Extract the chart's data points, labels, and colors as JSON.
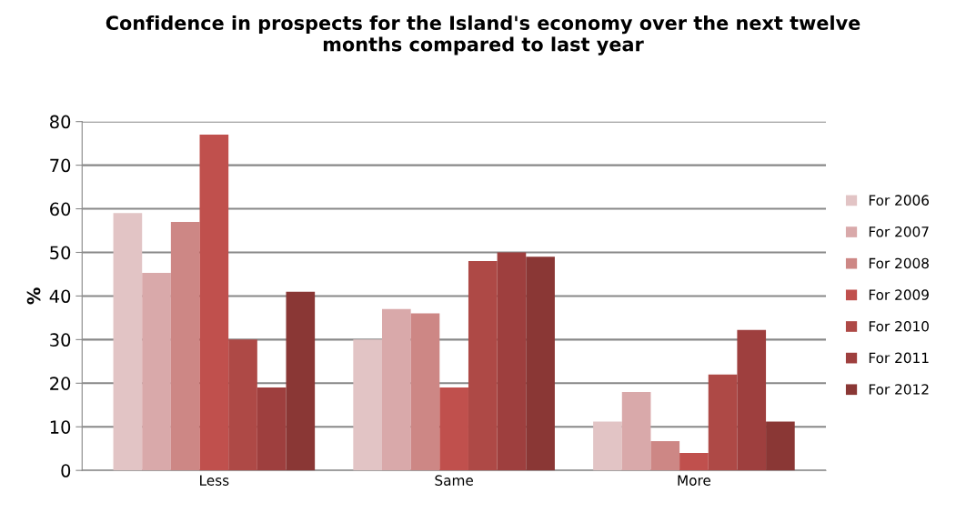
{
  "chart_data": {
    "type": "bar",
    "title": "Confidence in prospects for the Island's economy over the next twelve months compared to last year",
    "ylabel": "%",
    "categories": [
      "Less",
      "Same",
      "More"
    ],
    "series": [
      {
        "name": "For 2006",
        "color": "#e2c4c5",
        "values": [
          59,
          30,
          11.2
        ]
      },
      {
        "name": "For 2007",
        "color": "#d9a9aa",
        "values": [
          45.3,
          37,
          18
        ]
      },
      {
        "name": "For 2008",
        "color": "#cd8785",
        "values": [
          57,
          36,
          6.7
        ]
      },
      {
        "name": "For 2009",
        "color": "#c0504d",
        "values": [
          77,
          19,
          4
        ]
      },
      {
        "name": "For 2010",
        "color": "#ae4946",
        "values": [
          30,
          48,
          22
        ]
      },
      {
        "name": "For 2011",
        "color": "#9e3f3e",
        "values": [
          19,
          50,
          32.2
        ]
      },
      {
        "name": "For 2012",
        "color": "#8a3735",
        "values": [
          41,
          49,
          11.2
        ]
      }
    ],
    "ylim": [
      0,
      80
    ],
    "yticks": [
      0,
      10,
      20,
      30,
      40,
      50,
      60,
      70,
      80
    ],
    "grid": "y",
    "legend": "right"
  }
}
